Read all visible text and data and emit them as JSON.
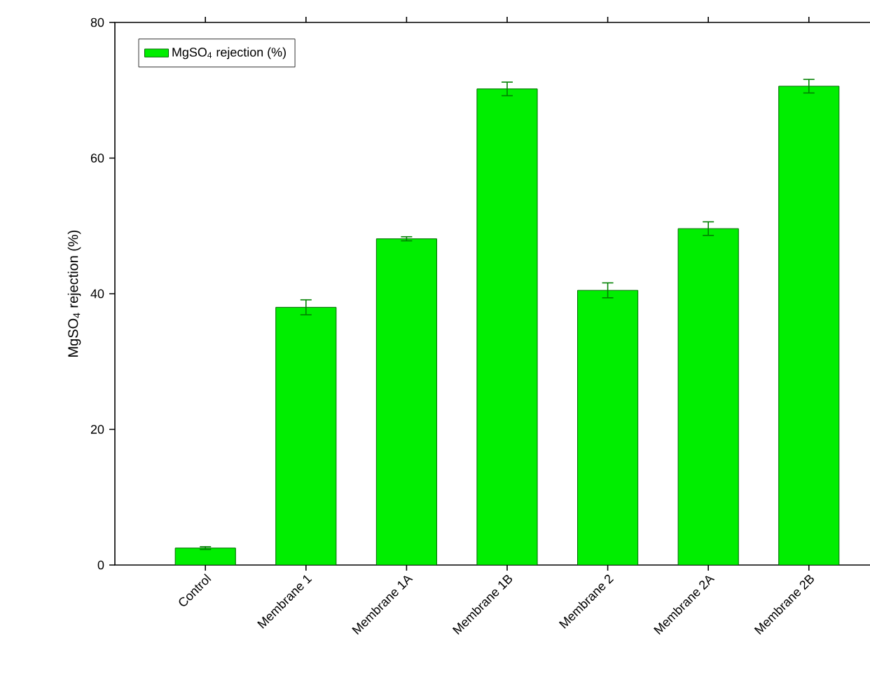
{
  "chart_data": {
    "type": "bar",
    "ylabel": "MgSO$_{4}$ rejection (%)",
    "categories": [
      "Control",
      "Membrane 1",
      "Membrane 1A",
      "Membrane 1B",
      "Membrane 2",
      "Membrane 2A",
      "Membrane 2B"
    ],
    "series": [
      {
        "name": "MgSO$_{4}$ rejection (%)",
        "color": "#00ee00",
        "values": [
          2.5,
          38.0,
          48.1,
          70.2,
          40.5,
          49.6,
          70.6
        ],
        "errors": [
          0.2,
          1.1,
          0.3,
          1.0,
          1.1,
          1.0,
          1.0
        ]
      }
    ],
    "ylim": [
      0,
      80
    ],
    "yticks": [
      0,
      20,
      40,
      60,
      80
    ],
    "legend": "top left",
    "grid": false
  }
}
